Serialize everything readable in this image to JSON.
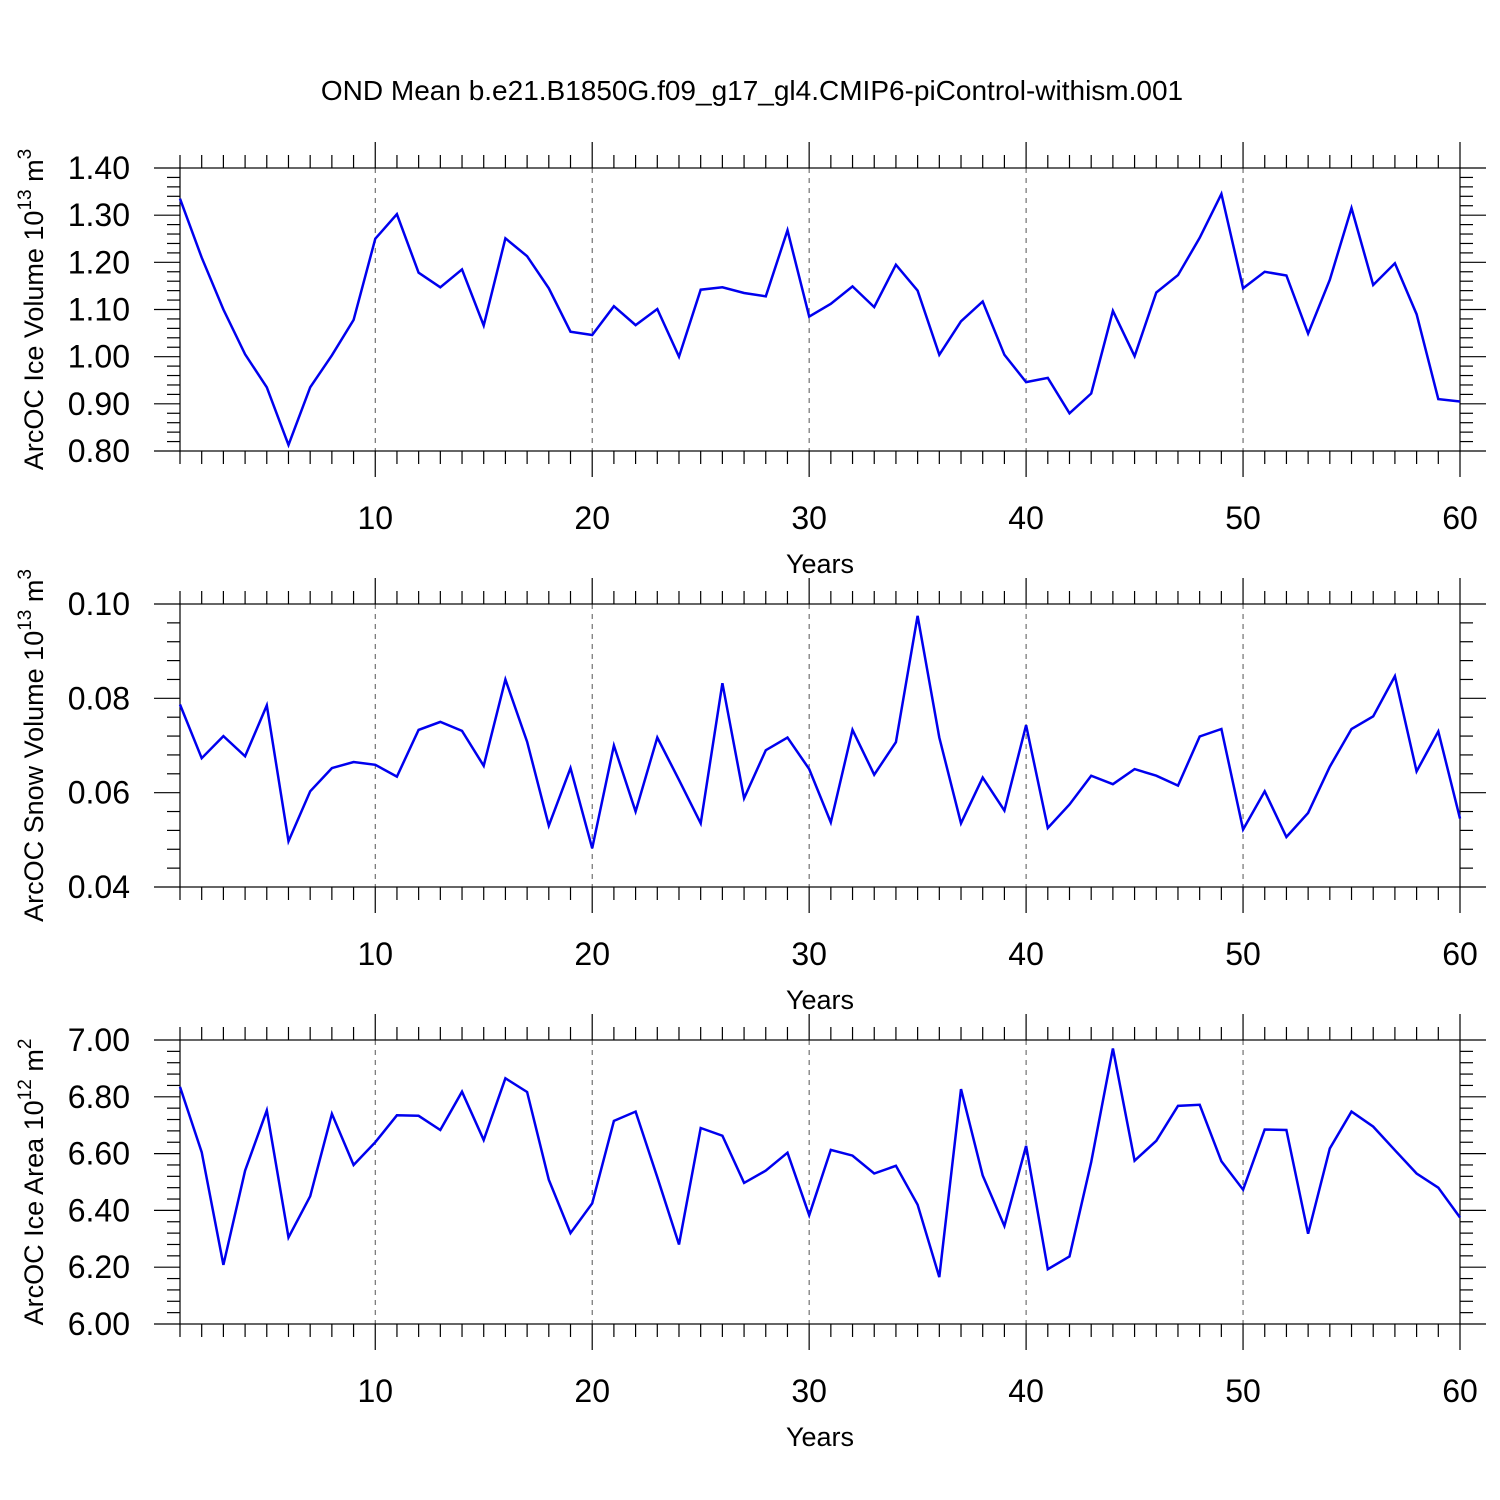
{
  "title": "OND Mean b.e21.B1850G.f09_g17_gl4.CMIP6-piControl-withism.001",
  "colors": {
    "line": "#0000ee",
    "axis": "#000000",
    "grid": "#555555"
  },
  "chart_data": [
    {
      "type": "line",
      "name": "ice-volume",
      "ylabel": {
        "text": "ArcOC Ice Volume 10",
        "sup1": "13",
        "mid": " m",
        "sup2": "3"
      },
      "xlabel": "Years",
      "xlim": [
        1,
        60
      ],
      "ylim": [
        0.8,
        1.4
      ],
      "yticks": [
        0.8,
        0.9,
        1.0,
        1.1,
        1.2,
        1.3,
        1.4
      ],
      "ytick_labels": [
        "0.80",
        "0.90",
        "1.00",
        "1.10",
        "1.20",
        "1.30",
        "1.40"
      ],
      "xticks": [
        10,
        20,
        30,
        40,
        50,
        60
      ],
      "xtick_labels": [
        "10",
        "20",
        "30",
        "40",
        "50",
        "60"
      ],
      "grid_x": true,
      "x": [
        1,
        2,
        3,
        4,
        5,
        6,
        7,
        8,
        9,
        10,
        11,
        12,
        13,
        14,
        15,
        16,
        17,
        18,
        19,
        20,
        21,
        22,
        23,
        24,
        25,
        26,
        27,
        28,
        29,
        30,
        31,
        32,
        33,
        34,
        35,
        36,
        37,
        38,
        39,
        40,
        41,
        42,
        43,
        44,
        45,
        46,
        47,
        48,
        49,
        50,
        51,
        52,
        53,
        54,
        55,
        56,
        57,
        58,
        59,
        60
      ],
      "values": [
        1.335,
        1.21,
        1.1,
        1.005,
        0.935,
        0.813,
        0.935,
        1.003,
        1.078,
        1.25,
        1.302,
        1.178,
        1.147,
        1.185,
        1.066,
        1.251,
        1.213,
        1.145,
        1.053,
        1.046,
        1.107,
        1.067,
        1.101,
        1.0,
        1.142,
        1.147,
        1.135,
        1.128,
        1.268,
        1.085,
        1.112,
        1.149,
        1.105,
        1.195,
        1.14,
        1.004,
        1.075,
        1.117,
        1.004,
        0.946,
        0.955,
        0.88,
        0.922,
        1.097,
        1.001,
        1.136,
        1.173,
        1.252,
        1.345,
        1.145,
        1.18,
        1.172,
        1.049,
        1.163,
        1.315,
        1.152,
        1.198,
        1.09,
        0.91,
        0.905
      ]
    },
    {
      "type": "line",
      "name": "snow-volume",
      "ylabel": {
        "text": "ArcOC Snow Volume 10",
        "sup1": "13",
        "mid": " m",
        "sup2": "3"
      },
      "xlabel": "Years",
      "xlim": [
        1,
        60
      ],
      "ylim": [
        0.04,
        0.1
      ],
      "yticks": [
        0.04,
        0.06,
        0.08,
        0.1
      ],
      "ytick_labels": [
        "0.04",
        "0.06",
        "0.08",
        "0.10"
      ],
      "xticks": [
        10,
        20,
        30,
        40,
        50,
        60
      ],
      "xtick_labels": [
        "10",
        "20",
        "30",
        "40",
        "50",
        "60"
      ],
      "grid_x": true,
      "x": [
        1,
        2,
        3,
        4,
        5,
        6,
        7,
        8,
        9,
        10,
        11,
        12,
        13,
        14,
        15,
        16,
        17,
        18,
        19,
        20,
        21,
        22,
        23,
        24,
        25,
        26,
        27,
        28,
        29,
        30,
        31,
        32,
        33,
        34,
        35,
        36,
        37,
        38,
        39,
        40,
        41,
        42,
        43,
        44,
        45,
        46,
        47,
        48,
        49,
        50,
        51,
        52,
        53,
        54,
        55,
        56,
        57,
        58,
        59,
        60
      ],
      "values": [
        0.0787,
        0.0673,
        0.072,
        0.0677,
        0.0785,
        0.0497,
        0.0603,
        0.0652,
        0.0665,
        0.0659,
        0.0634,
        0.0733,
        0.075,
        0.0731,
        0.0657,
        0.084,
        0.0708,
        0.053,
        0.0652,
        0.0482,
        0.07,
        0.056,
        0.0717,
        0.0627,
        0.0535,
        0.0832,
        0.0588,
        0.069,
        0.0717,
        0.065,
        0.0537,
        0.0733,
        0.0638,
        0.0707,
        0.0975,
        0.0717,
        0.0535,
        0.0632,
        0.0562,
        0.0743,
        0.0525,
        0.0575,
        0.0636,
        0.0618,
        0.065,
        0.0636,
        0.0615,
        0.0719,
        0.0735,
        0.0522,
        0.0603,
        0.0506,
        0.0557,
        0.0655,
        0.0735,
        0.0762,
        0.0847,
        0.0645,
        0.073,
        0.0545
      ]
    },
    {
      "type": "line",
      "name": "ice-area",
      "ylabel": {
        "text": "ArcOC Ice Area 10",
        "sup1": "12",
        "mid": " m",
        "sup2": "2"
      },
      "xlabel": "Years",
      "xlim": [
        1,
        60
      ],
      "ylim": [
        6.0,
        7.0
      ],
      "yticks": [
        6.0,
        6.2,
        6.4,
        6.6,
        6.8,
        7.0
      ],
      "ytick_labels": [
        "6.00",
        "6.20",
        "6.40",
        "6.60",
        "6.80",
        "7.00"
      ],
      "xticks": [
        10,
        20,
        30,
        40,
        50,
        60
      ],
      "xtick_labels": [
        "10",
        "20",
        "30",
        "40",
        "50",
        "60"
      ],
      "grid_x": true,
      "x": [
        1,
        2,
        3,
        4,
        5,
        6,
        7,
        8,
        9,
        10,
        11,
        12,
        13,
        14,
        15,
        16,
        17,
        18,
        19,
        20,
        21,
        22,
        23,
        24,
        25,
        26,
        27,
        28,
        29,
        30,
        31,
        32,
        33,
        34,
        35,
        36,
        37,
        38,
        39,
        40,
        41,
        42,
        43,
        44,
        45,
        46,
        47,
        48,
        49,
        50,
        51,
        52,
        53,
        54,
        55,
        56,
        57,
        58,
        59,
        60
      ],
      "values": [
        6.835,
        6.605,
        6.208,
        6.54,
        6.752,
        6.305,
        6.45,
        6.74,
        6.56,
        6.64,
        6.735,
        6.733,
        6.683,
        6.818,
        6.648,
        6.865,
        6.817,
        6.508,
        6.32,
        6.425,
        6.715,
        6.748,
        6.517,
        6.28,
        6.69,
        6.663,
        6.497,
        6.54,
        6.603,
        6.383,
        6.613,
        6.593,
        6.53,
        6.557,
        6.42,
        6.165,
        6.827,
        6.523,
        6.345,
        6.627,
        6.193,
        6.238,
        6.57,
        6.97,
        6.575,
        6.645,
        6.768,
        6.772,
        6.573,
        6.473,
        6.685,
        6.683,
        6.318,
        6.618,
        6.748,
        6.695,
        6.612,
        6.53,
        6.48,
        6.375
      ]
    }
  ]
}
